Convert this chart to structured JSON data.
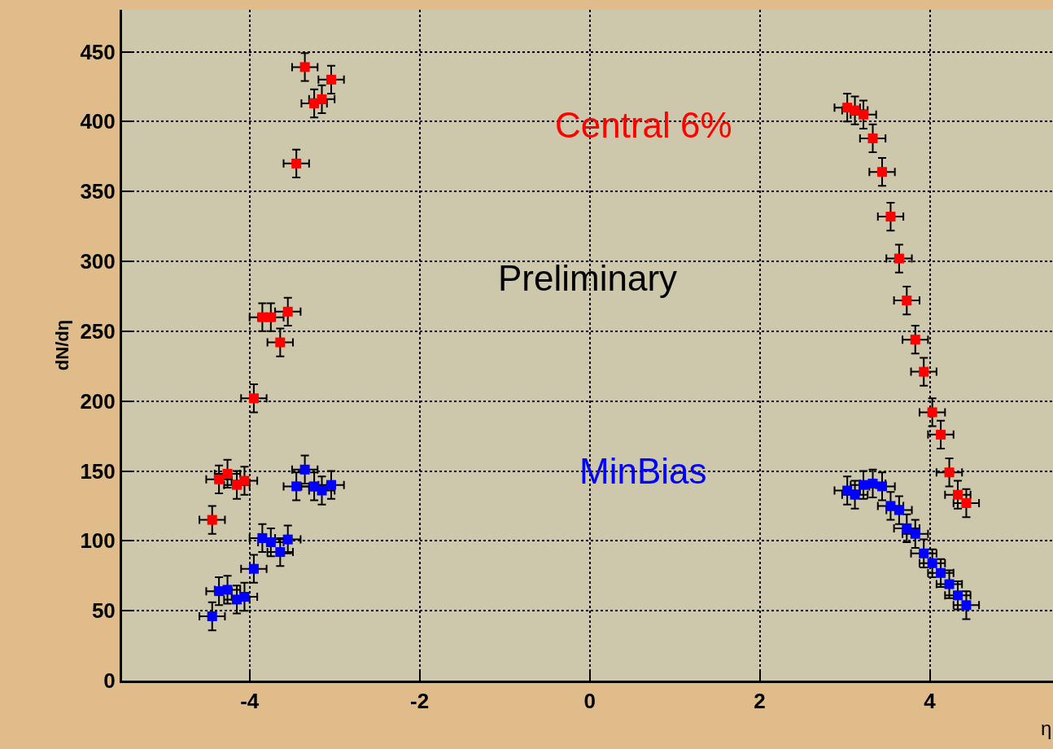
{
  "chart_data": {
    "type": "scatter",
    "xlabel": "η",
    "ylabel": "dN/dη",
    "annotations": [
      "Preliminary"
    ],
    "xlim": [
      -5.5,
      5.45
    ],
    "ylim": [
      0,
      480
    ],
    "xticks": [
      -4,
      -2,
      0,
      2,
      4
    ],
    "yticks": [
      0,
      50,
      100,
      150,
      200,
      250,
      300,
      350,
      400,
      450
    ],
    "grid": true,
    "legend": false,
    "marker": "square",
    "series": [
      {
        "name": "Central 6%",
        "color": "#ff0000",
        "x": [
          -4.44,
          -4.36,
          -4.26,
          -4.15,
          -4.06,
          -3.95,
          -3.85,
          -3.75,
          -3.64,
          -3.55,
          -3.45,
          -3.35,
          -3.24,
          -3.15,
          -3.04,
          3.03,
          3.12,
          3.22,
          3.33,
          3.44,
          3.54,
          3.64,
          3.73,
          3.83,
          3.93,
          4.03,
          4.13,
          4.23,
          4.33,
          4.43
        ],
        "values": [
          115,
          144,
          148,
          140,
          143,
          202,
          260,
          260,
          242,
          264,
          370,
          439,
          413,
          416,
          430,
          410,
          408,
          405,
          388,
          364,
          332,
          302,
          272,
          244,
          221,
          192,
          176,
          149,
          133,
          127
        ],
        "errors": [
          10,
          10,
          10,
          10,
          10,
          10,
          10,
          10,
          10,
          10,
          10,
          10,
          10,
          10,
          10,
          10,
          10,
          10,
          10,
          10,
          10,
          10,
          10,
          10,
          10,
          10,
          10,
          10,
          10,
          10
        ],
        "xerrors": [
          0.15,
          0.15,
          0.15,
          0.15,
          0.15,
          0.15,
          0.15,
          0.15,
          0.15,
          0.15,
          0.15,
          0.15,
          0.15,
          0.15,
          0.15,
          0.15,
          0.15,
          0.15,
          0.15,
          0.15,
          0.15,
          0.15,
          0.15,
          0.15,
          0.15,
          0.15,
          0.15,
          0.15,
          0.15,
          0.15
        ]
      },
      {
        "name": "MinBias",
        "color": "#0000ff",
        "x": [
          -4.44,
          -4.36,
          -4.26,
          -4.15,
          -4.06,
          -3.95,
          -3.85,
          -3.75,
          -3.64,
          -3.55,
          -3.45,
          -3.35,
          -3.24,
          -3.15,
          -3.04,
          3.03,
          3.12,
          3.22,
          3.33,
          3.44,
          3.54,
          3.64,
          3.73,
          3.83,
          3.93,
          4.03,
          4.13,
          4.23,
          4.33,
          4.43
        ],
        "values": [
          46,
          64,
          65,
          58,
          60,
          80,
          102,
          99,
          92,
          101,
          139,
          151,
          139,
          136,
          140,
          136,
          133,
          140,
          141,
          139,
          125,
          122,
          109,
          105,
          91,
          84,
          77,
          69,
          61,
          54
        ],
        "errors": [
          10,
          10,
          10,
          10,
          10,
          10,
          10,
          10,
          10,
          10,
          10,
          10,
          10,
          10,
          10,
          10,
          10,
          10,
          10,
          10,
          10,
          10,
          10,
          10,
          10,
          10,
          10,
          10,
          10,
          10
        ],
        "xerrors": [
          0.15,
          0.15,
          0.15,
          0.15,
          0.15,
          0.15,
          0.15,
          0.15,
          0.15,
          0.15,
          0.15,
          0.15,
          0.15,
          0.15,
          0.15,
          0.15,
          0.15,
          0.15,
          0.15,
          0.15,
          0.15,
          0.15,
          0.15,
          0.15,
          0.15,
          0.15,
          0.15,
          0.15,
          0.15,
          0.15
        ]
      }
    ]
  }
}
